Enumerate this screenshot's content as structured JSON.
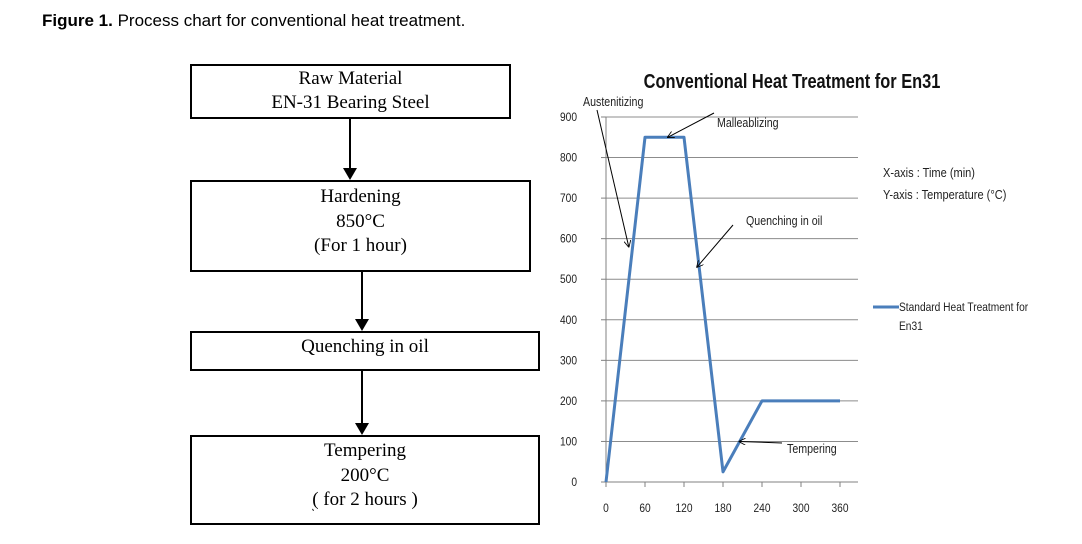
{
  "caption": {
    "label": "Figure 1.",
    "text": " Process chart for conventional heat treatment."
  },
  "flowchart": {
    "raw_material": {
      "line1": "Raw Material",
      "line2": "EN-31 Bearing Steel"
    },
    "hardening": {
      "line1": "Hardening",
      "line2": "850°C",
      "line3": "(For 1 hour)"
    },
    "quenching": {
      "line1": "Quenching in oil"
    },
    "tempering": {
      "line1": "Tempering",
      "line2": "200°C",
      "line3_open": "(",
      "line3_mid": " for 2 hours ",
      "line3_close": ")"
    }
  },
  "chart_data": {
    "type": "line",
    "title": "Conventional Heat Treatment for En31",
    "xlabel": "",
    "ylabel": "",
    "xlim": [
      0,
      360
    ],
    "ylim": [
      0,
      900
    ],
    "x_ticks": [
      0,
      60,
      120,
      180,
      240,
      300,
      360
    ],
    "y_ticks": [
      0,
      100,
      200,
      300,
      400,
      500,
      600,
      700,
      800,
      900
    ],
    "grid": "horizontal",
    "line_color": "#4a7ebb",
    "series": [
      {
        "name": "Standard Heat Treatment for En31",
        "x": [
          0,
          60,
          120,
          180,
          240,
          360
        ],
        "y": [
          0,
          850,
          850,
          25,
          200,
          200
        ]
      }
    ],
    "legend": {
      "position": "right",
      "line1": "Standard Heat Treatment for",
      "line2": "En31"
    },
    "axis_notes": [
      "X-axis : Time (min)",
      "Y-axis : Temperature (°C)"
    ],
    "annotations": [
      {
        "text": "Austenitizing",
        "target_x": 35,
        "target_y": 580
      },
      {
        "text": "Malleablizing",
        "target_x": 95,
        "target_y": 850
      },
      {
        "text": "Quenching in oil",
        "target_x": 140,
        "target_y": 530
      },
      {
        "text": "Tempering",
        "target_x": 205,
        "target_y": 100
      }
    ]
  }
}
